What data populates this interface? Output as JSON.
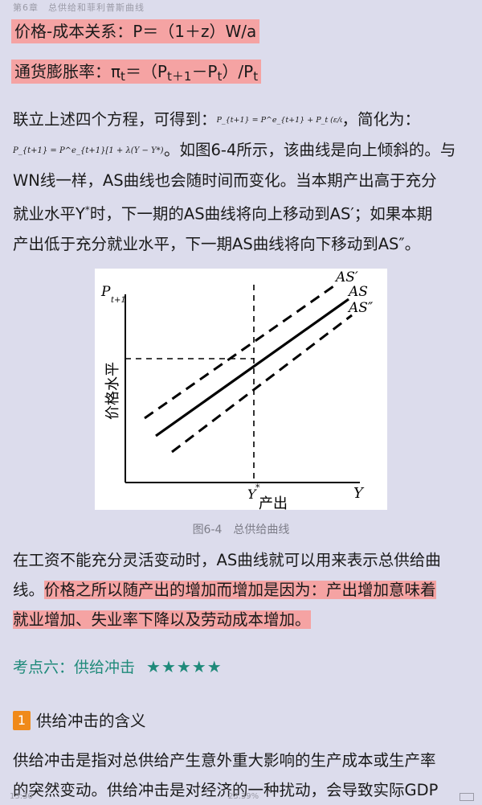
{
  "header": {
    "running_title": "第6章　总供给和菲利普斯曲线"
  },
  "eq_price": {
    "prefix": "价格-成本关系：P＝（1＋z）W/a"
  },
  "eq_inflation": {
    "p1": "通货膨胀率：π",
    "s1": "t",
    "p2": "＝（P",
    "s2": "t＋1",
    "p3": "－P",
    "s3": "t",
    "p4": "）/P",
    "s4": "t"
  },
  "para1": {
    "line1_a": "联立上述四个方程，可得到：",
    "formula1": "P_{t+1} = P^e_{t+1} + P_t (ε/ω)((Y − Y*)/Y*)",
    "line1_b": "，简化为：",
    "formula2": "P_{t+1} = P^e_{t+1}[1 + λ(Y − Y*)]",
    "line2_b": "。如图6-4所示，该曲线是向上倾斜的。与",
    "line3": "WN线一样，AS曲线也会随时间而变化。当本期产出高于充分",
    "line4_a": "就业水平Y",
    "line4_sup": "*",
    "line4_b": "时，下一期的AS曲线将向上移动到AS′；如果本期",
    "line5": "产出低于充分就业水平，下一期AS曲线将向下移动到AS″。"
  },
  "figure": {
    "caption": "图6-4　总供给曲线",
    "y_axis_title": "P",
    "y_axis_sub": "t+1",
    "y_axis_label": "价格水平",
    "x_axis_title": "Y",
    "x_axis_label": "产出",
    "ystar_label": "Y",
    "ystar_sup": "*",
    "curve_as_up": "AS′",
    "curve_as": "AS",
    "curve_as_down": "AS″"
  },
  "para2": {
    "line1": "在工资不能充分灵活变动时，AS曲线就可以用来表示总供给曲",
    "line2_a": "线。",
    "line2_b": "价格之所以随产出的增加而增加是因为：产出增加意味着",
    "line3": "就业增加、失业率下降以及劳动成本增加。"
  },
  "section": {
    "title": "考点六：供给冲击",
    "stars": "★★★★★"
  },
  "subsection": {
    "number": "1",
    "title": "供给冲击的含义"
  },
  "para3": {
    "line1": "供给冲击是指对总供给产生意外重大影响的生产成本或生产率",
    "line2": "的突然变动。供给冲击是对经济的一种扰动，会导致实际GDP"
  },
  "footer": {
    "time": "13:30",
    "progress": "23.39%"
  },
  "colors": {
    "background": "#dcdcec",
    "highlight": "#f5a3a3",
    "section_teal": "#1f8a7a",
    "badge_orange": "#f08a1a"
  }
}
